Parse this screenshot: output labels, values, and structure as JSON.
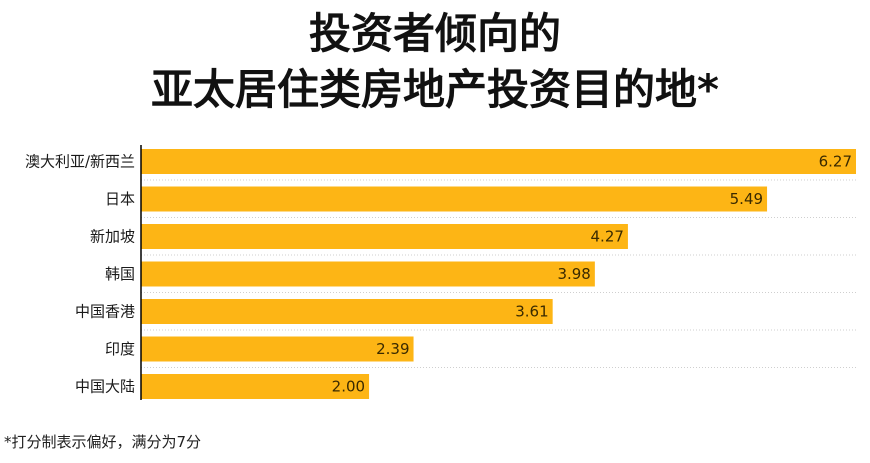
{
  "title": {
    "line1": "投资者倾向的",
    "line2": "亚太居住类房地产投资目的地*"
  },
  "footnote": "*打分制表示偏好，满分为7分",
  "colors": {
    "bar": "#FDB515",
    "grid": "#cfcfcf",
    "axis": "#000000",
    "text": "#1a1a1a"
  },
  "chart_data": {
    "type": "bar",
    "orientation": "horizontal",
    "categories": [
      "澳大利亚/新西兰",
      "日本",
      "新加坡",
      "韩国",
      "中国香港",
      "印度",
      "中国大陆"
    ],
    "values": [
      6.27,
      5.49,
      4.27,
      3.98,
      3.61,
      2.39,
      2.0
    ],
    "data_labels": [
      "6.27",
      "5.49",
      "4.27",
      "3.98",
      "3.61",
      "2.39",
      "2.00"
    ],
    "xlim": [
      0,
      6.27
    ],
    "grid": "horizontal dotted separators",
    "legend": "none"
  }
}
